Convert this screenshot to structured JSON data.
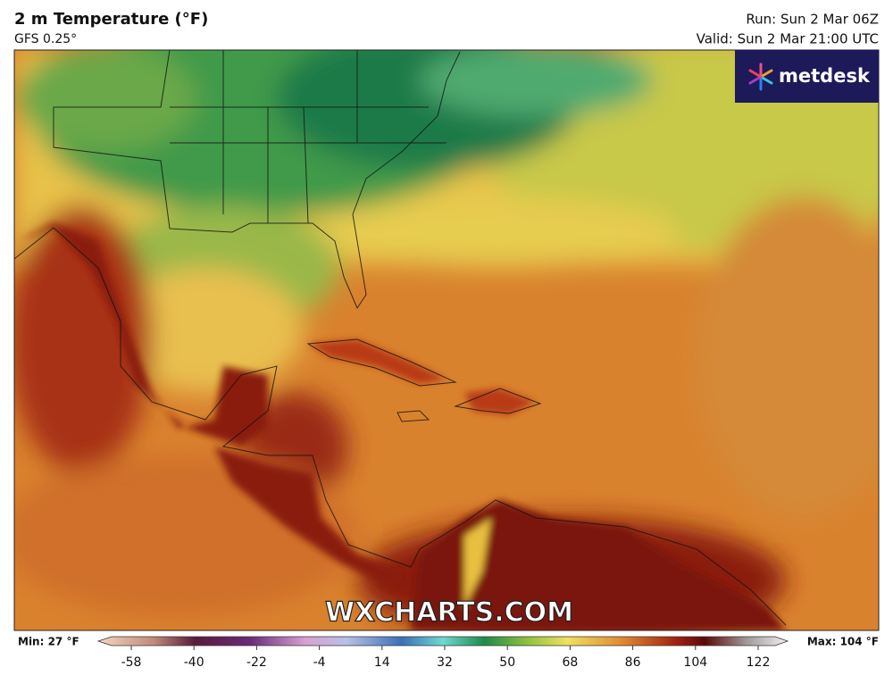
{
  "header": {
    "title": "2 m Temperature (°F)",
    "subtitle": "GFS 0.25°",
    "run": "Run: Sun 2 Mar 06Z",
    "valid": "Valid: Sun 2 Mar 21:00 UTC"
  },
  "logo": "metdesk",
  "watermark": "WXCHARTS.COM",
  "colorbar": {
    "min_label": "Min: 27 °F",
    "max_label": "Max: 104 °F",
    "ticks": [
      -58,
      -40,
      -22,
      -4,
      14,
      32,
      50,
      68,
      86,
      104,
      122
    ]
  }
}
